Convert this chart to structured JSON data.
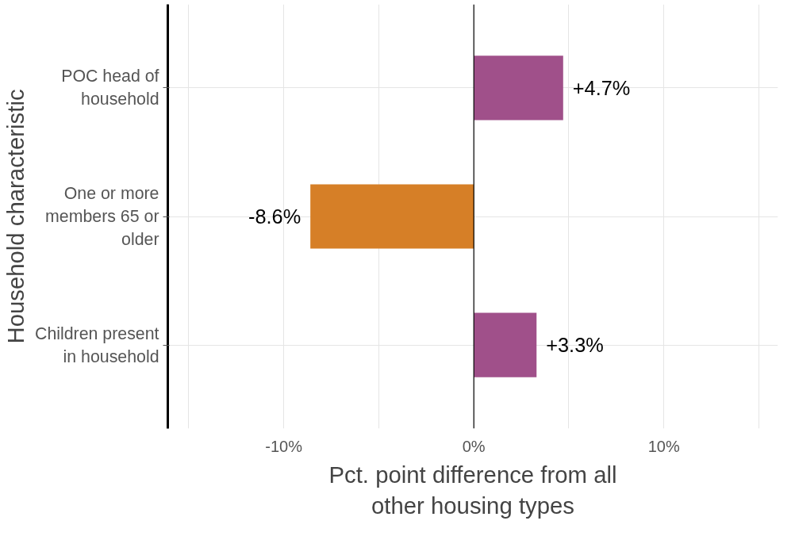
{
  "chart_data": {
    "type": "bar",
    "orientation": "horizontal",
    "xlabel": "Pct. point difference from all other housing types",
    "ylabel": "Household characteristic",
    "categories": [
      "POC head of household",
      "One or more members 65 or older",
      "Children present in household"
    ],
    "values": [
      4.7,
      -8.6,
      3.3
    ],
    "colors": [
      "#a0508a",
      "#d67f27",
      "#a0508a"
    ],
    "value_labels": [
      "+4.7%",
      "-8.6%",
      "+3.3%"
    ],
    "xlim": [
      -16.1,
      16.0
    ],
    "xticks": [
      {
        "value": -15,
        "label": null
      },
      {
        "value": -10,
        "label": "-10%"
      },
      {
        "value": -5,
        "label": null
      },
      {
        "value": 0,
        "label": "0%"
      },
      {
        "value": 5,
        "label": null
      },
      {
        "value": 10,
        "label": "10%"
      },
      {
        "value": 15,
        "label": null
      }
    ],
    "ref_lines": [
      {
        "axis": "x",
        "value": 0,
        "color": "#000000"
      }
    ],
    "grid": true
  }
}
